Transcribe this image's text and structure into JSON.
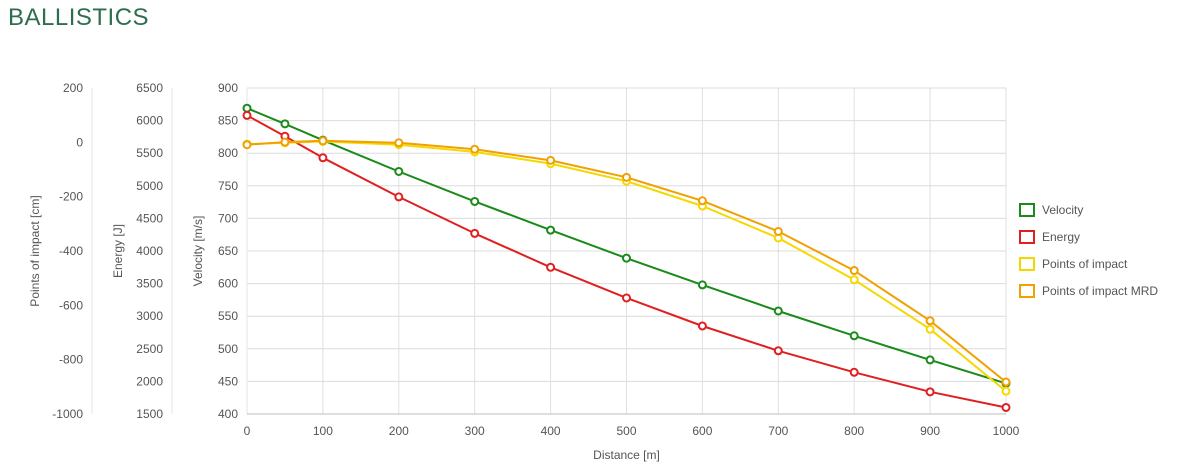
{
  "page": {
    "title": "BALLISTICS"
  },
  "chart_data": {
    "type": "line",
    "x": [
      0,
      50,
      100,
      200,
      300,
      400,
      500,
      600,
      700,
      800,
      900,
      1000
    ],
    "xlabel": "Distance [m]",
    "xlim": [
      0,
      1000
    ],
    "xticks": [
      0,
      100,
      200,
      300,
      400,
      500,
      600,
      700,
      800,
      900,
      1000
    ],
    "grid": true,
    "legend_position": "right",
    "axes": [
      {
        "id": "poi",
        "title": "Points of impact [cm]",
        "min": -1000,
        "max": 200,
        "ticks": [
          -1000,
          -800,
          -600,
          -400,
          -200,
          0,
          200
        ]
      },
      {
        "id": "energy",
        "title": "Energy [J]",
        "min": 1500,
        "max": 6500,
        "ticks": [
          1500,
          2000,
          2500,
          3000,
          3500,
          4000,
          4500,
          5000,
          5500,
          6000,
          6500
        ]
      },
      {
        "id": "velocity",
        "title": "Velocity [m/s]",
        "min": 400,
        "max": 900,
        "ticks": [
          400,
          450,
          500,
          550,
          600,
          650,
          700,
          750,
          800,
          850,
          900
        ]
      }
    ],
    "series": [
      {
        "name": "Velocity",
        "axis": "velocity",
        "color": "#1a8a1a",
        "values": [
          869,
          845,
          820,
          772,
          726,
          682,
          639,
          598,
          558,
          520,
          483,
          447
        ]
      },
      {
        "name": "Energy",
        "axis": "energy",
        "color": "#e02020",
        "values": [
          6080,
          5760,
          5430,
          4830,
          4270,
          3750,
          3280,
          2850,
          2470,
          2140,
          1840,
          1600
        ]
      },
      {
        "name": "Points of impact",
        "axis": "velocity",
        "color": "#f5d800",
        "values": [
          814,
          816,
          818,
          813,
          802,
          784,
          757,
          719,
          670,
          606,
          530,
          435
        ]
      },
      {
        "name": "Points of impact MRD",
        "axis": "velocity",
        "color": "#f0a000",
        "values": [
          813,
          817,
          819,
          816,
          806,
          789,
          763,
          727,
          680,
          620,
          543,
          449
        ]
      }
    ]
  }
}
